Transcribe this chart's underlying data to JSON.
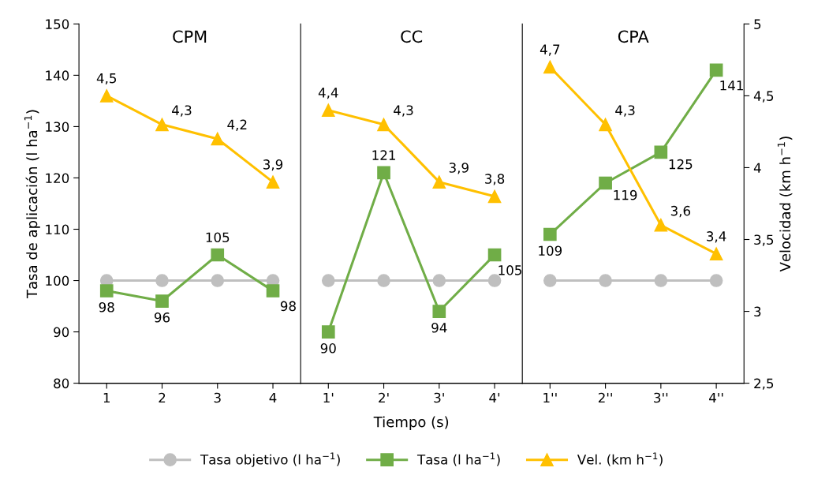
{
  "chart_data": [
    {
      "type": "line",
      "title": "CPM",
      "ylabel": "Tasa de aplicación (l ha$^{−1}$)",
      "categories": [
        "1",
        "2",
        "3",
        "4"
      ],
      "ylim": [
        80,
        150
      ],
      "yticks": [
        80,
        90,
        100,
        110,
        120,
        130,
        140,
        150
      ],
      "y2lim": [
        2.5,
        5
      ],
      "legend": "bottom",
      "grid": false,
      "series": [
        {
          "name": "Tasa objetivo (l ha$^{−1}$)",
          "color": "#bfbfbf",
          "marker": "circle",
          "values": [
            100,
            100,
            100,
            100
          ]
        },
        {
          "name": "Tasa (l ha$^{−1}$)",
          "color": "#70ad47",
          "marker": "square",
          "values": [
            98,
            96,
            105,
            98
          ],
          "value_labels": [
            "98",
            "96",
            "105",
            "98"
          ]
        },
        {
          "name": "Vel. (km h$^{−1}$)",
          "color": "#ffc000",
          "marker": "triangle",
          "axis": "y2",
          "values": [
            4.5,
            4.3,
            4.2,
            3.9
          ],
          "value_labels": [
            "4,5",
            "4,3",
            "4,2",
            "3,9"
          ]
        }
      ]
    },
    {
      "type": "line",
      "title": "CC",
      "xlabel": "Tiempo (s)",
      "categories": [
        "1'",
        "2'",
        "3'",
        "4'"
      ],
      "ylim": [
        80,
        150
      ],
      "y2lim": [
        2.5,
        5
      ],
      "tick_labels": "x",
      "grid": false,
      "series": [
        {
          "color": "#bfbfbf",
          "marker": "circle",
          "values": [
            100,
            100,
            100,
            100
          ]
        },
        {
          "color": "#70ad47",
          "marker": "square",
          "values": [
            90,
            121,
            94,
            105
          ],
          "value_labels": [
            "90",
            "121",
            "94",
            "105"
          ]
        },
        {
          "color": "#ffc000",
          "marker": "triangle",
          "axis": "y2",
          "values": [
            4.4,
            4.3,
            3.9,
            3.8
          ],
          "value_labels": [
            "4,4",
            "4,3",
            "3,9",
            "3,8"
          ]
        }
      ]
    },
    {
      "type": "line",
      "title": "CPA",
      "y2label": "Velocidad (km h$^{−1}$)",
      "categories": [
        "1''",
        "2''",
        "3''",
        "4''"
      ],
      "ylim": [
        80,
        150
      ],
      "y2lim": [
        2.5,
        5
      ],
      "y2ticks": [
        {
          "value": 2.5,
          "label": "2,5"
        },
        {
          "value": 3,
          "label": "3"
        },
        {
          "value": 3.5,
          "label": "3,5"
        },
        {
          "value": 4,
          "label": "4"
        },
        {
          "value": 4.5,
          "label": "4,5"
        },
        {
          "value": 5,
          "label": "5"
        }
      ],
      "tick_labels": "x",
      "grid": false,
      "series": [
        {
          "color": "#bfbfbf",
          "marker": "circle",
          "values": [
            100,
            100,
            100,
            100
          ]
        },
        {
          "color": "#70ad47",
          "marker": "square",
          "values": [
            109,
            119,
            125,
            141
          ],
          "value_labels": [
            "109",
            "119",
            "125",
            "141"
          ]
        },
        {
          "color": "#ffc000",
          "marker": "triangle",
          "axis": "y2",
          "values": [
            4.7,
            4.3,
            3.6,
            3.4
          ],
          "value_labels": [
            "4,7",
            "4,3",
            "3,6",
            "3,4"
          ]
        }
      ]
    }
  ]
}
